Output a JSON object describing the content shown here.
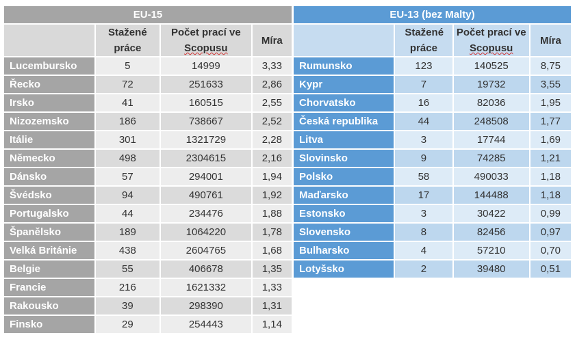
{
  "eu15": {
    "title": "EU-15",
    "headers": {
      "downloaded": "Stažené práce",
      "scopus_a": "Počet prací ve ",
      "scopus_b": "Scopusu",
      "rate": "Míra"
    },
    "rows": [
      [
        "Lucembursko",
        "5",
        "14999",
        "3,33"
      ],
      [
        "Řecko",
        "72",
        "251633",
        "2,86"
      ],
      [
        "Irsko",
        "41",
        "160515",
        "2,55"
      ],
      [
        "Nizozemsko",
        "186",
        "738667",
        "2,52"
      ],
      [
        "Itálie",
        "301",
        "1321729",
        "2,28"
      ],
      [
        "Německo",
        "498",
        "2304615",
        "2,16"
      ],
      [
        "Dánsko",
        "57",
        "294001",
        "1,94"
      ],
      [
        "Švédsko",
        "94",
        "490761",
        "1,92"
      ],
      [
        "Portugalsko",
        "44",
        "234476",
        "1,88"
      ],
      [
        "Španělsko",
        "189",
        "1064220",
        "1,78"
      ],
      [
        "Velká Británie",
        "438",
        "2604765",
        "1,68"
      ],
      [
        "Belgie",
        "55",
        "406678",
        "1,35"
      ],
      [
        "Francie",
        "216",
        "1621332",
        "1,33"
      ],
      [
        "Rakousko",
        "39",
        "298390",
        "1,31"
      ],
      [
        "Finsko",
        "29",
        "254443",
        "1,14"
      ]
    ]
  },
  "eu13": {
    "title": "EU-13 (bez Malty)",
    "headers": {
      "downloaded": "Stažené práce",
      "scopus_a": "Počet prací ve ",
      "scopus_b": "Scopusu",
      "rate": "Míra"
    },
    "rows": [
      [
        "Rumunsko",
        "123",
        "140525",
        "8,75"
      ],
      [
        "Kypr",
        "7",
        "19732",
        "3,55"
      ],
      [
        "Chorvatsko",
        "16",
        "82036",
        "1,95"
      ],
      [
        "Česká republika",
        "44",
        "248508",
        "1,77"
      ],
      [
        "Litva",
        "3",
        "17744",
        "1,69"
      ],
      [
        "Slovinsko",
        "9",
        "74285",
        "1,21"
      ],
      [
        "Polsko",
        "58",
        "490033",
        "1,18"
      ],
      [
        "Maďarsko",
        "17",
        "144488",
        "1,18"
      ],
      [
        "Estonsko",
        "3",
        "30422",
        "0,99"
      ],
      [
        "Slovensko",
        "8",
        "82456",
        "0,97"
      ],
      [
        "Bulharsko",
        "4",
        "57210",
        "0,70"
      ],
      [
        "Lotyšsko",
        "2",
        "39480",
        "0,51"
      ]
    ]
  }
}
